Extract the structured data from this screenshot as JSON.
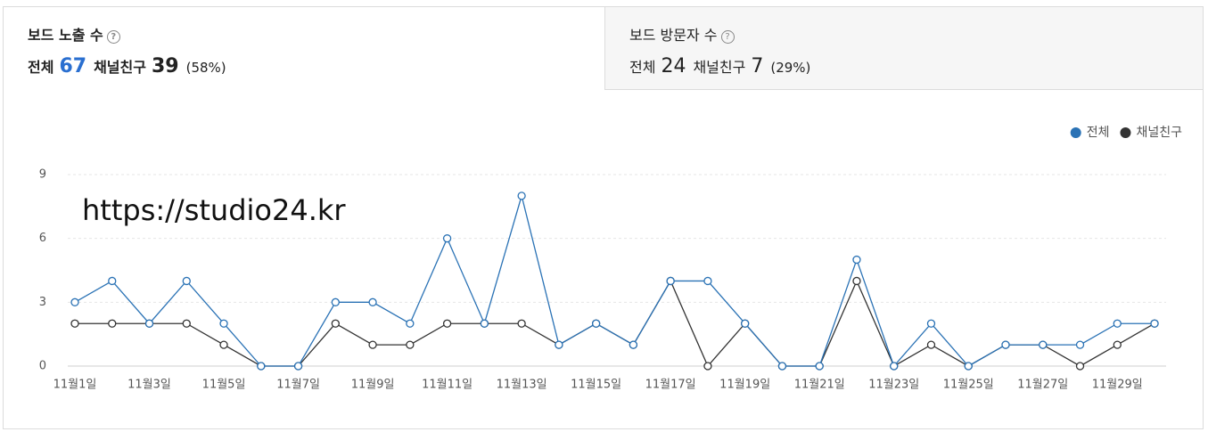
{
  "tabs": [
    {
      "title": "보드 노출 수",
      "total_label": "전체",
      "total": 67,
      "friend_label": "채널친구",
      "friend": 39,
      "pct": "(58%)"
    },
    {
      "title": "보드 방문자 수",
      "total_label": "전체",
      "total": 24,
      "friend_label": "채널친구",
      "friend": 7,
      "pct": "(29%)"
    }
  ],
  "chart_data": {
    "type": "line",
    "annotation": "https://studio24.kr",
    "categories": [
      "11월1일",
      null,
      "11월3일",
      null,
      "11월5일",
      null,
      "11월7일",
      null,
      "11월9일",
      null,
      "11월11일",
      null,
      "11월13일",
      null,
      "11월15일",
      null,
      "11월17일",
      null,
      "11월19일",
      null,
      "11월21일",
      null,
      "11월23일",
      null,
      "11월25일",
      null,
      "11월27일",
      null,
      "11월29일",
      null
    ],
    "series": [
      {
        "name": "전체",
        "color": "#2a72b5",
        "values": [
          3,
          4,
          2,
          4,
          2,
          0,
          0,
          3,
          3,
          2,
          6,
          2,
          8,
          1,
          2,
          1,
          4,
          4,
          2,
          0,
          0,
          5,
          0,
          2,
          0,
          1,
          1,
          1,
          2,
          2
        ]
      },
      {
        "name": "채널친구",
        "color": "#333333",
        "values": [
          2,
          2,
          2,
          2,
          1,
          0,
          0,
          2,
          1,
          1,
          2,
          2,
          2,
          1,
          2,
          1,
          4,
          0,
          2,
          0,
          0,
          4,
          0,
          1,
          0,
          1,
          1,
          0,
          1,
          2
        ]
      }
    ],
    "ylim": [
      0,
      9
    ],
    "yticks": [
      0,
      3,
      6,
      9
    ],
    "grid": true,
    "legend": "top-right"
  }
}
